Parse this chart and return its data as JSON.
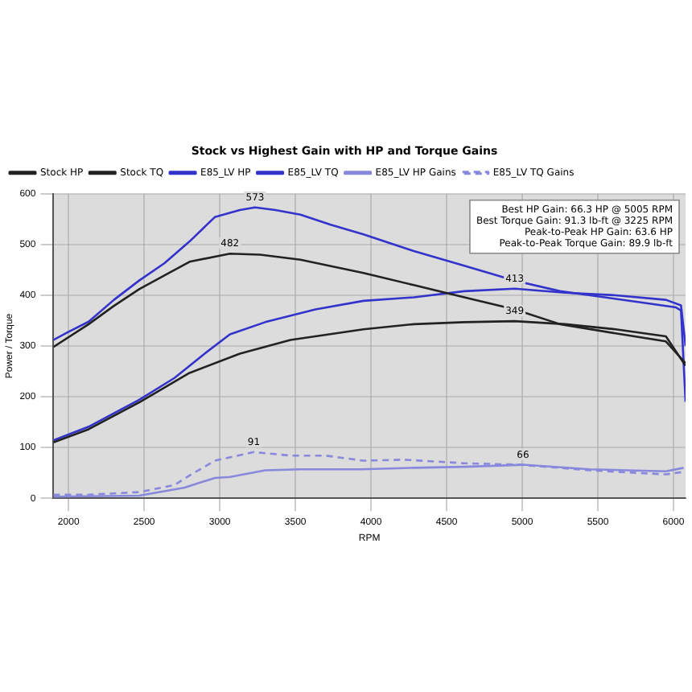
{
  "chart_data": {
    "type": "line",
    "title": "Stock vs Highest Gain with HP and Torque Gains",
    "xlabel": "RPM",
    "ylabel": "Power / Torque",
    "xlim": [
      1900,
      6080
    ],
    "xticks": [
      2000,
      2500,
      3000,
      3500,
      4000,
      4500,
      5000,
      5500,
      6000
    ],
    "ylim": [
      0,
      600
    ],
    "yticks": [
      0,
      100,
      200,
      300,
      400,
      500,
      600
    ],
    "grid": true,
    "legend": "top left",
    "marker": "none",
    "series": [
      {
        "name": "Stock HP",
        "color": "#222222",
        "x": [
          1900,
          2133,
          2467,
          2800,
          3133,
          3467,
          3950,
          4283,
          4617,
          4950,
          5283,
          5617,
          5950,
          6080
        ],
        "values": [
          110,
          136,
          189,
          247,
          285,
          312,
          333,
          343,
          347,
          349,
          343,
          333,
          319,
          261
        ]
      },
      {
        "name": "Stock TQ",
        "color": "#222222",
        "x": [
          1900,
          2133,
          2300,
          2467,
          2633,
          2800,
          3067,
          3267,
          3533,
          3950,
          4283,
          4617,
          4950,
          5250,
          5617,
          5950,
          6080
        ],
        "values": [
          298,
          343,
          379,
          412,
          439,
          466,
          482,
          480,
          470,
          444,
          420,
          396,
          372,
          343,
          325,
          309,
          266
        ]
      },
      {
        "name": "E85_LV HP",
        "color": "#3333cc",
        "x": [
          1900,
          2133,
          2467,
          2700,
          2900,
          3067,
          3300,
          3633,
          3950,
          4283,
          4617,
          4950,
          5283,
          5617,
          5950,
          6050,
          6080
        ],
        "values": [
          114,
          141,
          194,
          237,
          285,
          323,
          347,
          372,
          389,
          396,
          408,
          413,
          405,
          400,
          391,
          380,
          300
        ]
      },
      {
        "name": "E85_LV TQ",
        "color": "#3333cc",
        "x": [
          1900,
          2000,
          2133,
          2300,
          2467,
          2633,
          2800,
          2967,
          3133,
          3233,
          3367,
          3533,
          3733,
          3950,
          4283,
          4617,
          4950,
          5250,
          5450,
          5783,
          6017,
          6050,
          6080
        ],
        "values": [
          312,
          328,
          348,
          391,
          429,
          463,
          506,
          554,
          568,
          573,
          568,
          559,
          539,
          520,
          487,
          458,
          429,
          408,
          400,
          386,
          376,
          370,
          190
        ]
      },
      {
        "name": "E85_LV HP Gains",
        "color": "#8888dd",
        "line_style": "solid",
        "x": [
          1900,
          2467,
          2767,
          2967,
          3067,
          3300,
          3533,
          3933,
          4283,
          4617,
          5005,
          5450,
          5950,
          6067
        ],
        "values": [
          3,
          5,
          21,
          40,
          42,
          55,
          57,
          57,
          60,
          62,
          66,
          57,
          53,
          60
        ]
      },
      {
        "name": "E85_LV TQ Gains",
        "color": "#8888dd",
        "line_style": "dashed",
        "x": [
          1900,
          2133,
          2467,
          2700,
          2800,
          2967,
          3225,
          3467,
          3700,
          3950,
          4217,
          4617,
          4983,
          5450,
          5950,
          6067
        ],
        "values": [
          7,
          7,
          12,
          26,
          45,
          74,
          91,
          84,
          84,
          74,
          76,
          69,
          66,
          55,
          47,
          52
        ]
      }
    ],
    "annotations": [
      {
        "text": "482",
        "x": 3067,
        "y": 482
      },
      {
        "text": "573",
        "x": 3233,
        "y": 573
      },
      {
        "text": "349",
        "x": 4950,
        "y": 349
      },
      {
        "text": "413",
        "x": 4950,
        "y": 413
      },
      {
        "text": "91",
        "x": 3225,
        "y": 91
      },
      {
        "text": "66",
        "x": 5005,
        "y": 66
      },
      "Best HP Gain: 66.3 HP @ 5005 RPM",
      "Best Torque Gain: 91.3 lb-ft @ 3225 RPM",
      "Peak-to-Peak HP Gain: 63.6 HP",
      "Peak-to-Peak Torque Gain: 89.9 lb-ft"
    ]
  }
}
